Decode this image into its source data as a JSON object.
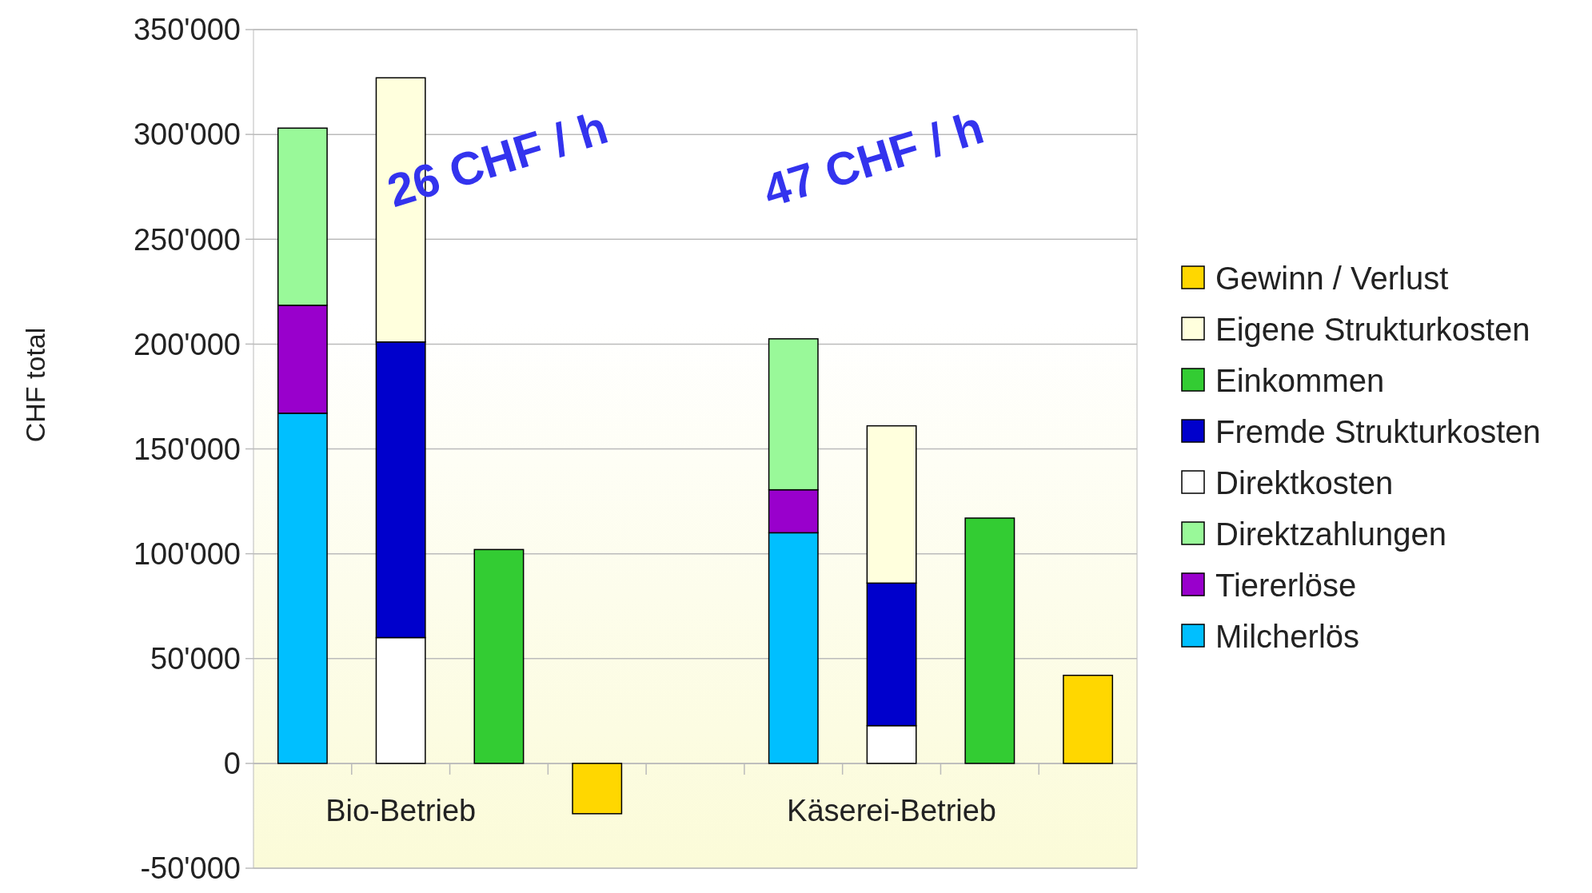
{
  "chart_data": {
    "type": "bar",
    "stacked": true,
    "ylabel": "CHF total",
    "categories": [
      null,
      "Bio-Betrieb",
      null,
      null,
      null,
      null,
      "Käserei-Betrieb",
      null,
      null
    ],
    "series": [
      {
        "name": "Milcherlös",
        "color": "#00bfff",
        "values": [
          167000,
          null,
          null,
          null,
          null,
          110000,
          null,
          null,
          null
        ]
      },
      {
        "name": "Tiererlöse",
        "color": "#9900cc",
        "values": [
          51500,
          null,
          null,
          null,
          null,
          20500,
          null,
          null,
          null
        ]
      },
      {
        "name": "Direktzahlungen",
        "color": "#99f999",
        "values": [
          84500,
          null,
          null,
          null,
          null,
          72000,
          null,
          null,
          null
        ]
      },
      {
        "name": "Direktkosten",
        "color": "#ffffff",
        "values": [
          null,
          60000,
          null,
          null,
          null,
          null,
          18000,
          null,
          null
        ]
      },
      {
        "name": "Fremde Strukturkosten",
        "color": "#0000cc",
        "values": [
          null,
          141000,
          null,
          null,
          null,
          null,
          68000,
          null,
          null
        ]
      },
      {
        "name": "Einkommen",
        "color": "#33cc33",
        "values": [
          null,
          null,
          102000,
          null,
          null,
          null,
          null,
          117000,
          null
        ]
      },
      {
        "name": "Eigene Strukturkosten",
        "color": "#ffffdd",
        "values": [
          null,
          126000,
          null,
          null,
          null,
          null,
          75000,
          null,
          null
        ]
      },
      {
        "name": "Gewinn / Verlust",
        "color": "#ffd700",
        "values": [
          null,
          null,
          null,
          -24000,
          null,
          null,
          null,
          null,
          42000
        ]
      }
    ],
    "ylim": [
      -50000,
      350000
    ],
    "yticks": [
      {
        "value": -50000,
        "label": "-50'000"
      },
      {
        "value": 0,
        "label": "0"
      },
      {
        "value": 50000,
        "label": "50'000"
      },
      {
        "value": 100000,
        "label": "100'000"
      },
      {
        "value": 150000,
        "label": "150'000"
      },
      {
        "value": 200000,
        "label": "200'000"
      },
      {
        "value": 250000,
        "label": "250'000"
      },
      {
        "value": 300000,
        "label": "300'000"
      },
      {
        "value": 350000,
        "label": "350'000"
      }
    ],
    "grid": "y",
    "legend": "right",
    "annotations": [
      "26 CHF / h",
      "47 CHF / h"
    ]
  }
}
